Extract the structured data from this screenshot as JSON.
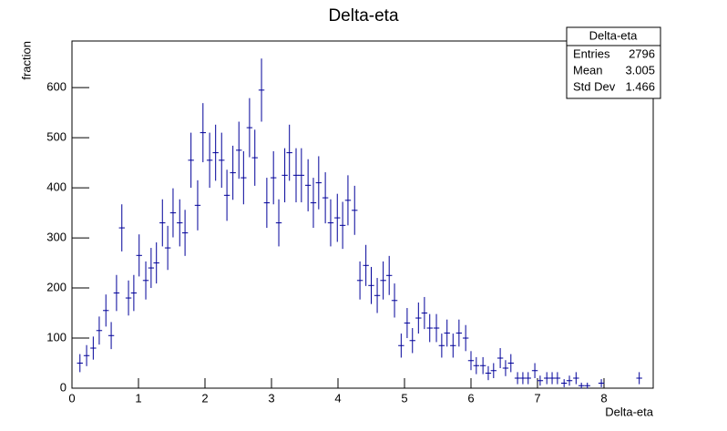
{
  "chart_data": {
    "type": "errorbar",
    "title": "Delta-eta",
    "x_label": "Delta-eta",
    "y_label": "fraction",
    "color": "#000099",
    "x": [
      0.12,
      0.22,
      0.32,
      0.41,
      0.51,
      0.59,
      0.67,
      0.75,
      0.85,
      0.93,
      1.01,
      1.11,
      1.19,
      1.27,
      1.36,
      1.44,
      1.52,
      1.62,
      1.7,
      1.79,
      1.89,
      1.97,
      2.07,
      2.16,
      2.25,
      2.33,
      2.42,
      2.51,
      2.58,
      2.67,
      2.75,
      2.85,
      2.93,
      3.03,
      3.11,
      3.2,
      3.27,
      3.37,
      3.45,
      3.55,
      3.63,
      3.71,
      3.81,
      3.89,
      3.99,
      4.07,
      4.15,
      4.25,
      4.33,
      4.42,
      4.5,
      4.59,
      4.68,
      4.77,
      4.85,
      4.95,
      5.04,
      5.12,
      5.21,
      5.3,
      5.38,
      5.48,
      5.56,
      5.64,
      5.73,
      5.82,
      5.92,
      6.0,
      6.08,
      6.18,
      6.26,
      6.34,
      6.44,
      6.52,
      6.6,
      6.7,
      6.78,
      6.86,
      6.96,
      7.04,
      7.14,
      7.22,
      7.3,
      7.4,
      7.48,
      7.58,
      7.66,
      7.75,
      7.96,
      8.53
    ],
    "values": [
      50,
      65,
      80,
      115,
      155,
      105,
      190,
      320,
      180,
      190,
      265,
      215,
      240,
      250,
      330,
      280,
      350,
      330,
      310,
      455,
      365,
      510,
      455,
      470,
      455,
      385,
      430,
      475,
      420,
      520,
      460,
      595,
      370,
      420,
      330,
      425,
      470,
      425,
      425,
      405,
      370,
      410,
      380,
      330,
      340,
      325,
      375,
      355,
      215,
      245,
      205,
      185,
      215,
      225,
      175,
      85,
      130,
      95,
      140,
      150,
      120,
      120,
      85,
      110,
      85,
      110,
      100,
      55,
      45,
      45,
      30,
      35,
      60,
      40,
      50,
      20,
      20,
      20,
      35,
      15,
      20,
      20,
      20,
      10,
      15,
      20,
      5,
      5,
      10,
      20
    ],
    "errors": [
      18,
      21,
      23,
      28,
      32,
      27,
      36,
      47,
      35,
      36,
      42,
      38,
      40,
      41,
      47,
      44,
      49,
      47,
      46,
      55,
      50,
      59,
      55,
      56,
      55,
      51,
      54,
      57,
      53,
      59,
      56,
      63,
      50,
      53,
      47,
      54,
      56,
      54,
      54,
      52,
      50,
      53,
      51,
      47,
      48,
      47,
      50,
      49,
      38,
      41,
      37,
      35,
      38,
      39,
      34,
      24,
      30,
      25,
      31,
      32,
      28,
      28,
      24,
      27,
      24,
      27,
      26,
      19,
      17,
      17,
      14,
      15,
      20,
      16,
      18,
      12,
      12,
      12,
      15,
      10,
      12,
      12,
      12,
      8,
      10,
      12,
      6,
      6,
      8,
      12
    ],
    "xlim": [
      0,
      8.74
    ],
    "ylim": [
      0,
      693
    ],
    "xticks": [
      0,
      1,
      2,
      3,
      4,
      5,
      6,
      7,
      8
    ],
    "yticks": [
      0,
      100,
      200,
      300,
      400,
      500,
      600
    ],
    "stats": {
      "title": "Delta-eta",
      "rows": [
        [
          "Entries",
          2796
        ],
        [
          "Mean",
          3.005
        ],
        [
          "Std Dev",
          1.466
        ]
      ]
    }
  }
}
